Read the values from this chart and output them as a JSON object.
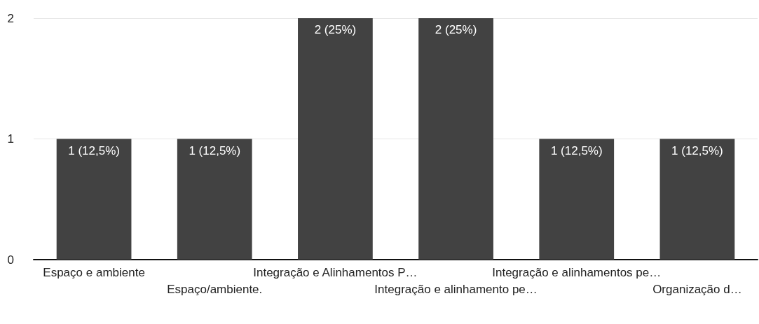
{
  "chart_data": {
    "type": "bar",
    "categories": [
      "Espaço e ambiente",
      "Espaço/ambiente.",
      "Integração e Alinhamentos P…",
      "Integração e alinhamento pe…",
      "Integração e alinhamentos pe…",
      "Organização d…"
    ],
    "values": [
      1,
      1,
      2,
      2,
      1,
      1
    ],
    "value_labels": [
      "1 (12,5%)",
      "1 (12,5%)",
      "2 (25%)",
      "2 (25%)",
      "1 (12,5%)",
      "1 (12,5%)"
    ],
    "color": "#424242",
    "ylim": [
      0,
      2
    ],
    "yticks": [
      0,
      1,
      2
    ],
    "grid": "y"
  }
}
